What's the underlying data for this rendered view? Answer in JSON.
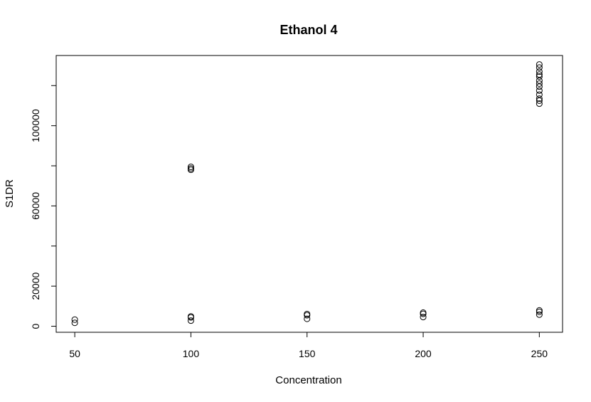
{
  "chart_data": {
    "type": "scatter",
    "title": "Ethanol 4",
    "xlabel": "Concentration",
    "ylabel": "S1DR",
    "x_ticks": [
      50,
      100,
      150,
      200,
      250
    ],
    "y_ticks": [
      0,
      20000,
      60000,
      100000
    ],
    "y_minor_ticks": [
      40000,
      80000,
      120000
    ],
    "xlim": [
      42,
      260
    ],
    "ylim": [
      -3000,
      135000
    ],
    "grid": false,
    "legend": "none",
    "points": [
      {
        "x": 50,
        "y": 1700
      },
      {
        "x": 50,
        "y": 3300
      },
      {
        "x": 100,
        "y": 2800
      },
      {
        "x": 100,
        "y": 4400
      },
      {
        "x": 100,
        "y": 4900
      },
      {
        "x": 100,
        "y": 78000
      },
      {
        "x": 100,
        "y": 78700
      },
      {
        "x": 100,
        "y": 79500
      },
      {
        "x": 150,
        "y": 3700
      },
      {
        "x": 150,
        "y": 5500
      },
      {
        "x": 150,
        "y": 6100
      },
      {
        "x": 200,
        "y": 4600
      },
      {
        "x": 200,
        "y": 6200
      },
      {
        "x": 200,
        "y": 6800
      },
      {
        "x": 250,
        "y": 5800
      },
      {
        "x": 250,
        "y": 7200
      },
      {
        "x": 250,
        "y": 7900
      },
      {
        "x": 250,
        "y": 111000
      },
      {
        "x": 250,
        "y": 112500
      },
      {
        "x": 250,
        "y": 113500
      },
      {
        "x": 250,
        "y": 115500
      },
      {
        "x": 250,
        "y": 117500
      },
      {
        "x": 250,
        "y": 119500
      },
      {
        "x": 250,
        "y": 121000
      },
      {
        "x": 250,
        "y": 122500
      },
      {
        "x": 250,
        "y": 124500
      },
      {
        "x": 250,
        "y": 125500
      },
      {
        "x": 250,
        "y": 127000
      },
      {
        "x": 250,
        "y": 129000
      },
      {
        "x": 250,
        "y": 130500
      }
    ]
  }
}
